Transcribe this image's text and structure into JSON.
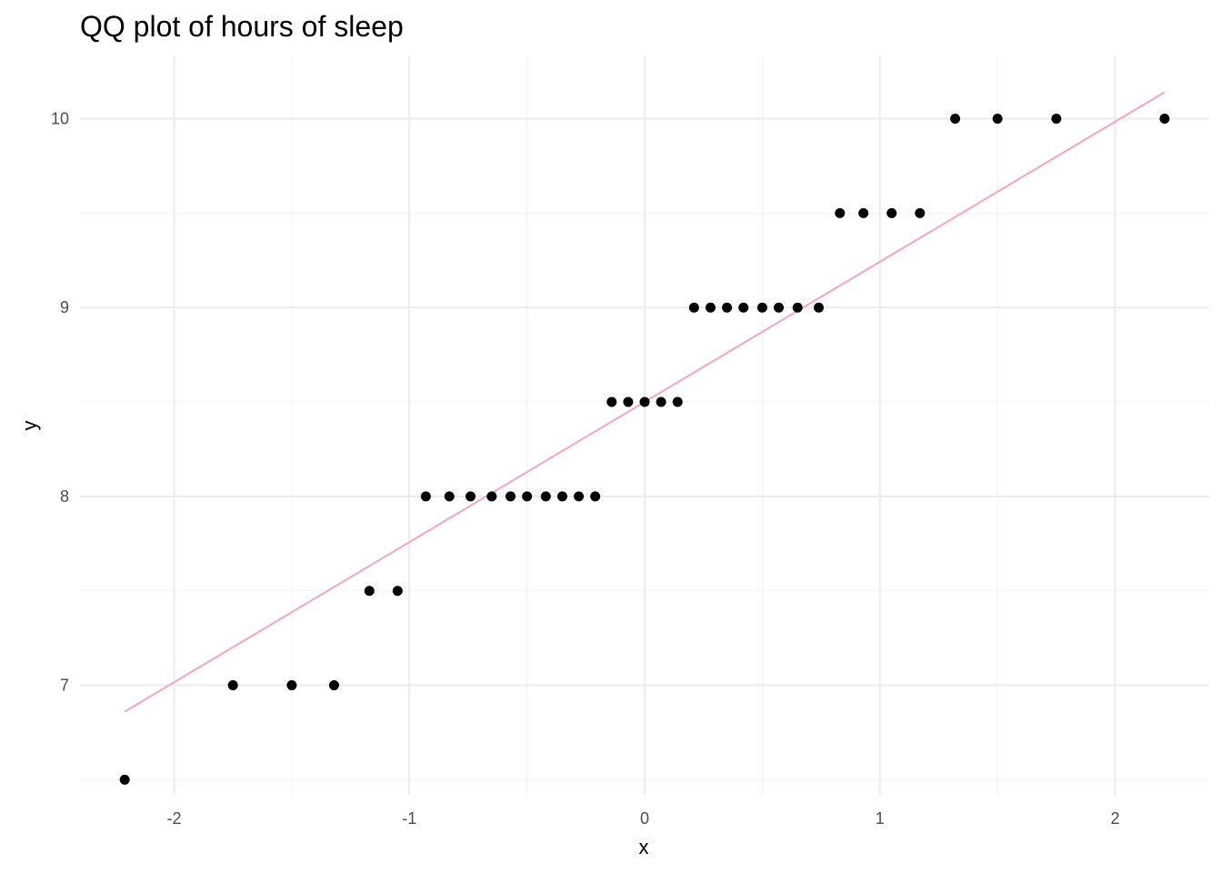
{
  "chart_data": {
    "type": "scatter",
    "title": "QQ plot of hours of sleep",
    "xlabel": "x",
    "ylabel": "y",
    "xlim": [
      -2.4,
      2.4
    ],
    "ylim": [
      6.42,
      10.33
    ],
    "x_ticks": [
      -2,
      -1,
      0,
      1,
      2
    ],
    "x_tick_labels": [
      "-2",
      "-1",
      "0",
      "1",
      "2"
    ],
    "y_ticks": [
      7,
      8,
      9,
      10
    ],
    "y_tick_labels": [
      "7",
      "8",
      "9",
      "10"
    ],
    "grid": true,
    "points": {
      "x": [
        -2.21,
        -1.75,
        -1.5,
        -1.32,
        -1.17,
        -1.05,
        -0.93,
        -0.83,
        -0.74,
        -0.65,
        -0.57,
        -0.5,
        -0.42,
        -0.35,
        -0.28,
        -0.21,
        -0.14,
        -0.07,
        0.0,
        0.07,
        0.14,
        0.21,
        0.28,
        0.35,
        0.42,
        0.5,
        0.57,
        0.65,
        0.74,
        0.83,
        0.93,
        1.05,
        1.17,
        1.32,
        1.5,
        1.75,
        2.21
      ],
      "y": [
        6.5,
        7,
        7,
        7,
        7.5,
        7.5,
        8,
        8,
        8,
        8,
        8,
        8,
        8,
        8,
        8,
        8,
        8.5,
        8.5,
        8.5,
        8.5,
        8.5,
        9,
        9,
        9,
        9,
        9,
        9,
        9,
        9,
        9.5,
        9.5,
        9.5,
        9.5,
        10,
        10,
        10,
        10
      ],
      "color": "#000000"
    },
    "qq_line": {
      "x": [
        -2.21,
        2.21
      ],
      "y": [
        6.86,
        10.14
      ],
      "color": "#f4a6b9"
    },
    "colors": {
      "major_grid": "#ebebeb",
      "minor_grid": "#f2f2f2"
    }
  }
}
